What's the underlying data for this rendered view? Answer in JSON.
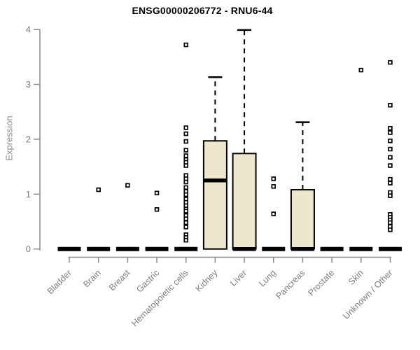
{
  "page": {
    "title": "ENSG00000206772 - RNU6-44"
  },
  "chart_data": {
    "type": "boxplot",
    "title": "ENSG00000206772 - RNU6-44",
    "xlabel": "",
    "ylabel": "Expression",
    "ylim": [
      0,
      4
    ],
    "yticks": [
      0,
      1,
      2,
      3,
      4
    ],
    "grid": false,
    "legend": false,
    "categories": [
      "Bladder",
      "Brain",
      "Breast",
      "Gastric",
      "Hematopoietic cells",
      "Kidney",
      "Liver",
      "Lung",
      "Pancreas",
      "Prostate",
      "Skin",
      "Unknown / Other"
    ],
    "series": [
      {
        "category": "Bladder",
        "min": 0,
        "q1": 0,
        "median": 0,
        "q3": 0,
        "whisker_high": 0,
        "outliers": []
      },
      {
        "category": "Brain",
        "min": 0,
        "q1": 0,
        "median": 0,
        "q3": 0,
        "whisker_high": 0,
        "outliers": [
          1.08
        ]
      },
      {
        "category": "Breast",
        "min": 0,
        "q1": 0,
        "median": 0,
        "q3": 0,
        "whisker_high": 0,
        "outliers": [
          1.16
        ]
      },
      {
        "category": "Gastric",
        "min": 0,
        "q1": 0,
        "median": 0,
        "q3": 0,
        "whisker_high": 0,
        "outliers": [
          1.02,
          0.72
        ]
      },
      {
        "category": "Hematopoietic cells",
        "min": 0,
        "q1": 0,
        "median": 0,
        "q3": 0,
        "whisker_high": 0,
        "outliers": [
          3.72,
          2.21,
          2.1,
          1.96,
          1.8,
          1.7,
          1.63,
          1.58,
          1.52,
          1.34,
          1.28,
          1.22,
          1.12,
          1.05,
          0.99,
          0.91,
          0.85,
          0.79,
          0.73,
          0.69,
          0.61,
          0.55,
          0.48,
          0.4,
          0.26,
          0.21,
          0.16
        ]
      },
      {
        "category": "Kidney",
        "min": 0,
        "q1": 0,
        "median": 1.25,
        "q3": 1.97,
        "whisker_high": 3.13,
        "outliers": []
      },
      {
        "category": "Liver",
        "min": 0,
        "q1": 0,
        "median": 0,
        "q3": 1.74,
        "whisker_high": 3.99,
        "outliers": []
      },
      {
        "category": "Lung",
        "min": 0,
        "q1": 0,
        "median": 0,
        "q3": 0,
        "whisker_high": 0,
        "outliers": [
          1.28,
          1.14,
          0.64
        ]
      },
      {
        "category": "Pancreas",
        "min": 0,
        "q1": 0,
        "median": 0,
        "q3": 1.08,
        "whisker_high": 2.31,
        "outliers": []
      },
      {
        "category": "Prostate",
        "min": 0,
        "q1": 0,
        "median": 0,
        "q3": 0,
        "whisker_high": 0,
        "outliers": []
      },
      {
        "category": "Skin",
        "min": 0,
        "q1": 0,
        "median": 0,
        "q3": 0,
        "whisker_high": 0,
        "outliers": [
          3.26
        ]
      },
      {
        "category": "Unknown / Other",
        "min": 0,
        "q1": 0,
        "median": 0,
        "q3": 0,
        "whisker_high": 0,
        "outliers": [
          3.4,
          2.62,
          2.2,
          2.12,
          1.97,
          1.82,
          1.67,
          1.52,
          1.27,
          1.2,
          1.03,
          0.97,
          0.63,
          0.58,
          0.53,
          0.48,
          0.41,
          0.35
        ]
      }
    ],
    "colors": {
      "box_fill": "#EDE8CD",
      "box_stroke": "#000000",
      "median": "#000000",
      "whisker": "#000000",
      "outlier_stroke": "#000000",
      "outlier_fill": "#FFFFFF",
      "axis_line": "#8A8A8A",
      "tick_label": "#7E7E7E",
      "axis_label": "#8A8A8A",
      "title": "#000000",
      "background": "#FFFFFF"
    }
  }
}
